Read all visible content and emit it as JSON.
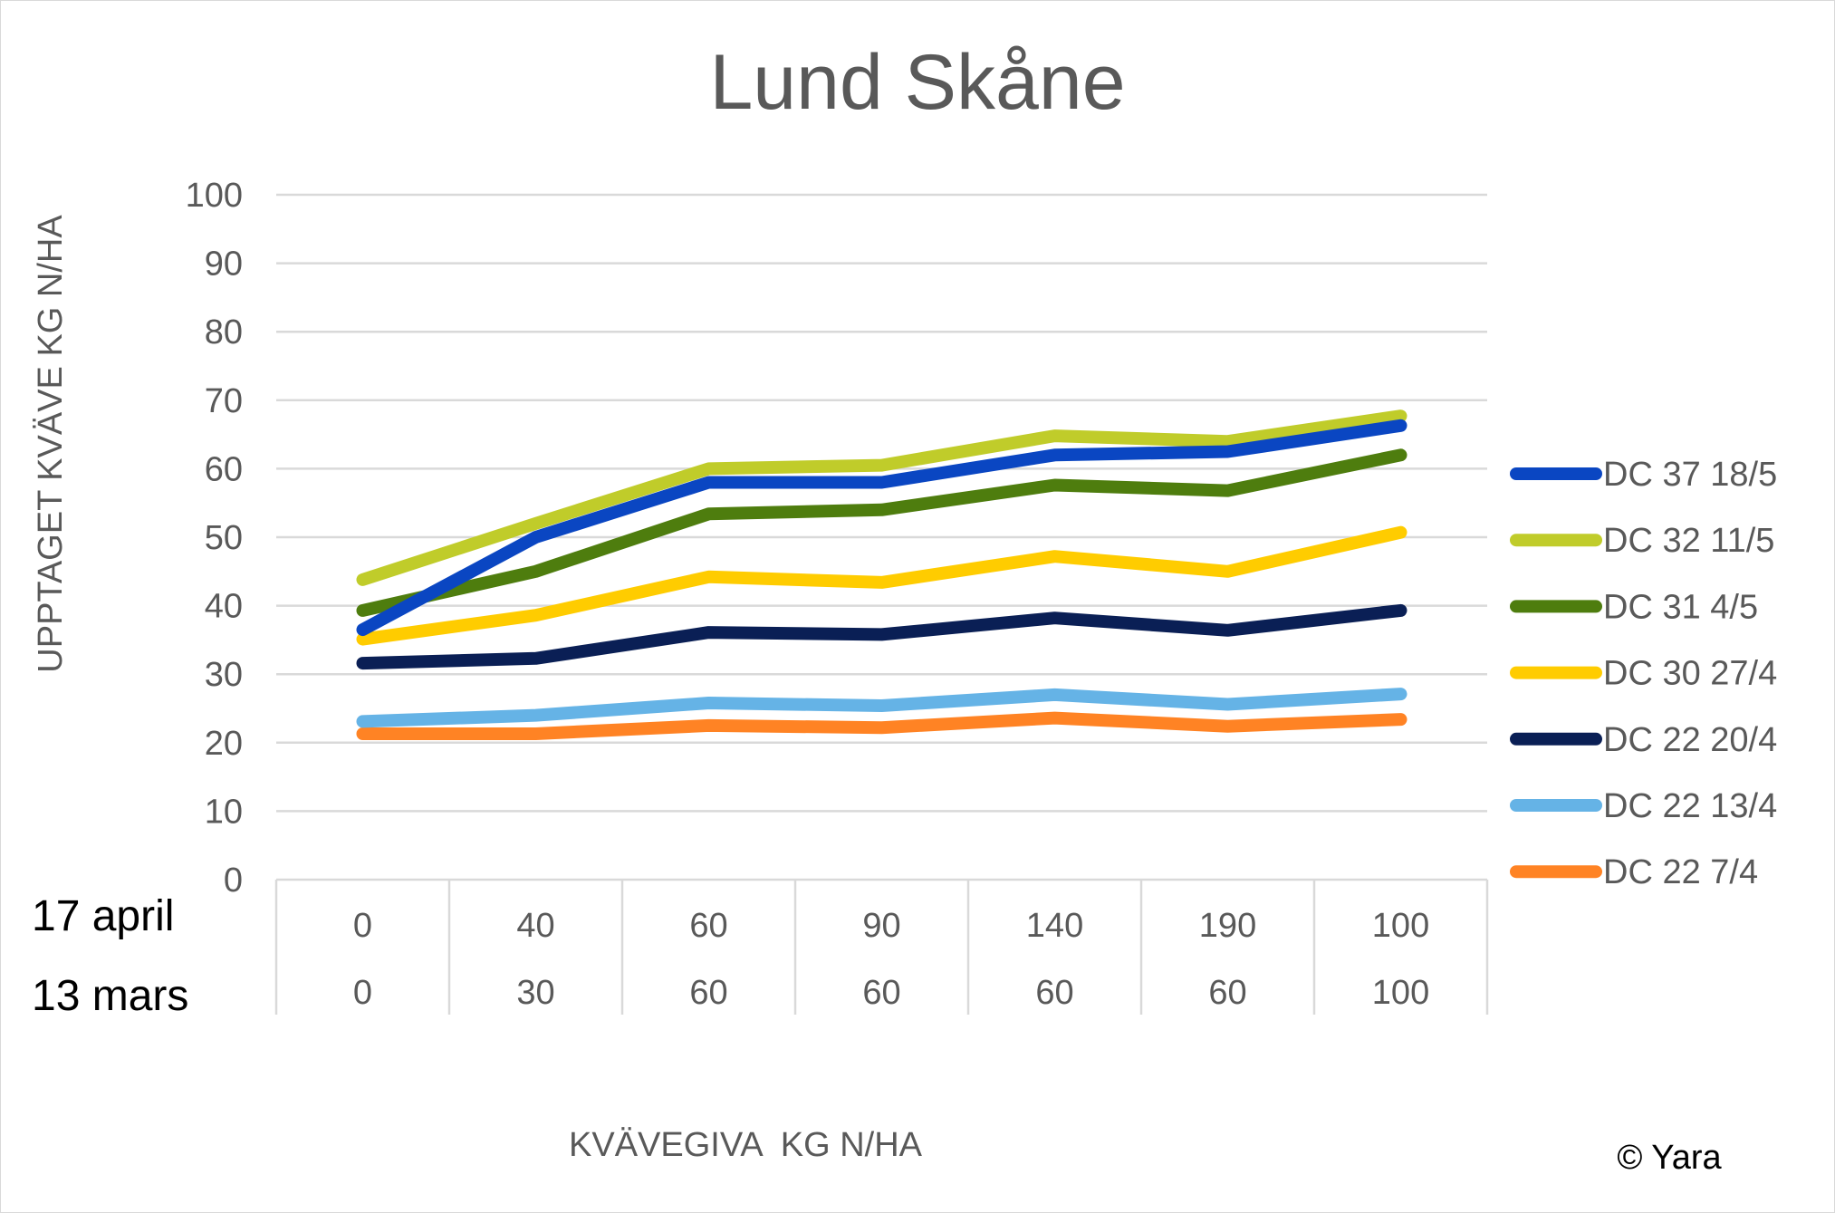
{
  "chart_data": {
    "type": "line",
    "title": "Lund Skåne",
    "ylabel": "UPPTAGET KVÄVE KG N/HA",
    "xlabel": "KVÄVEGIVA  KG N/HA",
    "ylim": [
      0,
      100
    ],
    "yticks": [
      0,
      10,
      20,
      30,
      40,
      50,
      60,
      70,
      80,
      90,
      100
    ],
    "grid": true,
    "legend_position": "right",
    "category_rows": [
      {
        "label": "17 april",
        "values": [
          "0",
          "40",
          "60",
          "90",
          "140",
          "190",
          "100"
        ]
      },
      {
        "label": "13 mars",
        "values": [
          "0",
          "30",
          "60",
          "60",
          "60",
          "60",
          "100"
        ]
      }
    ],
    "series": [
      {
        "name": "DC 37 18/5",
        "color": "#0a46c2",
        "values": [
          36.5,
          50,
          58,
          58,
          62,
          62.5,
          66.3
        ]
      },
      {
        "name": "DC 32 11/5",
        "color": "#c0cc2a",
        "values": [
          43.8,
          52,
          60,
          60.5,
          64.8,
          64,
          67.7
        ]
      },
      {
        "name": "DC 31 4/5",
        "color": "#4e7d0e",
        "values": [
          39.3,
          45,
          53.4,
          54,
          57.6,
          56.8,
          62
        ]
      },
      {
        "name": "DC 30 27/4",
        "color": "#ffcc00",
        "values": [
          35.1,
          38.6,
          44.2,
          43.4,
          47.2,
          45,
          50.7
        ]
      },
      {
        "name": "DC 22 20/4",
        "color": "#0a1f55",
        "values": [
          31.6,
          32.3,
          36.1,
          35.8,
          38.2,
          36.4,
          39.3
        ]
      },
      {
        "name": "DC 22 13/4",
        "color": "#65b3e6",
        "values": [
          23.1,
          24,
          25.8,
          25.4,
          27,
          25.6,
          27.1
        ]
      },
      {
        "name": "DC 22 7/4",
        "color": "#ff8324",
        "values": [
          21.3,
          21.3,
          22.5,
          22.2,
          23.6,
          22.4,
          23.4
        ]
      }
    ],
    "gridline_color": "#d9d9d9"
  },
  "footer": {
    "copyright": "© Yara"
  }
}
